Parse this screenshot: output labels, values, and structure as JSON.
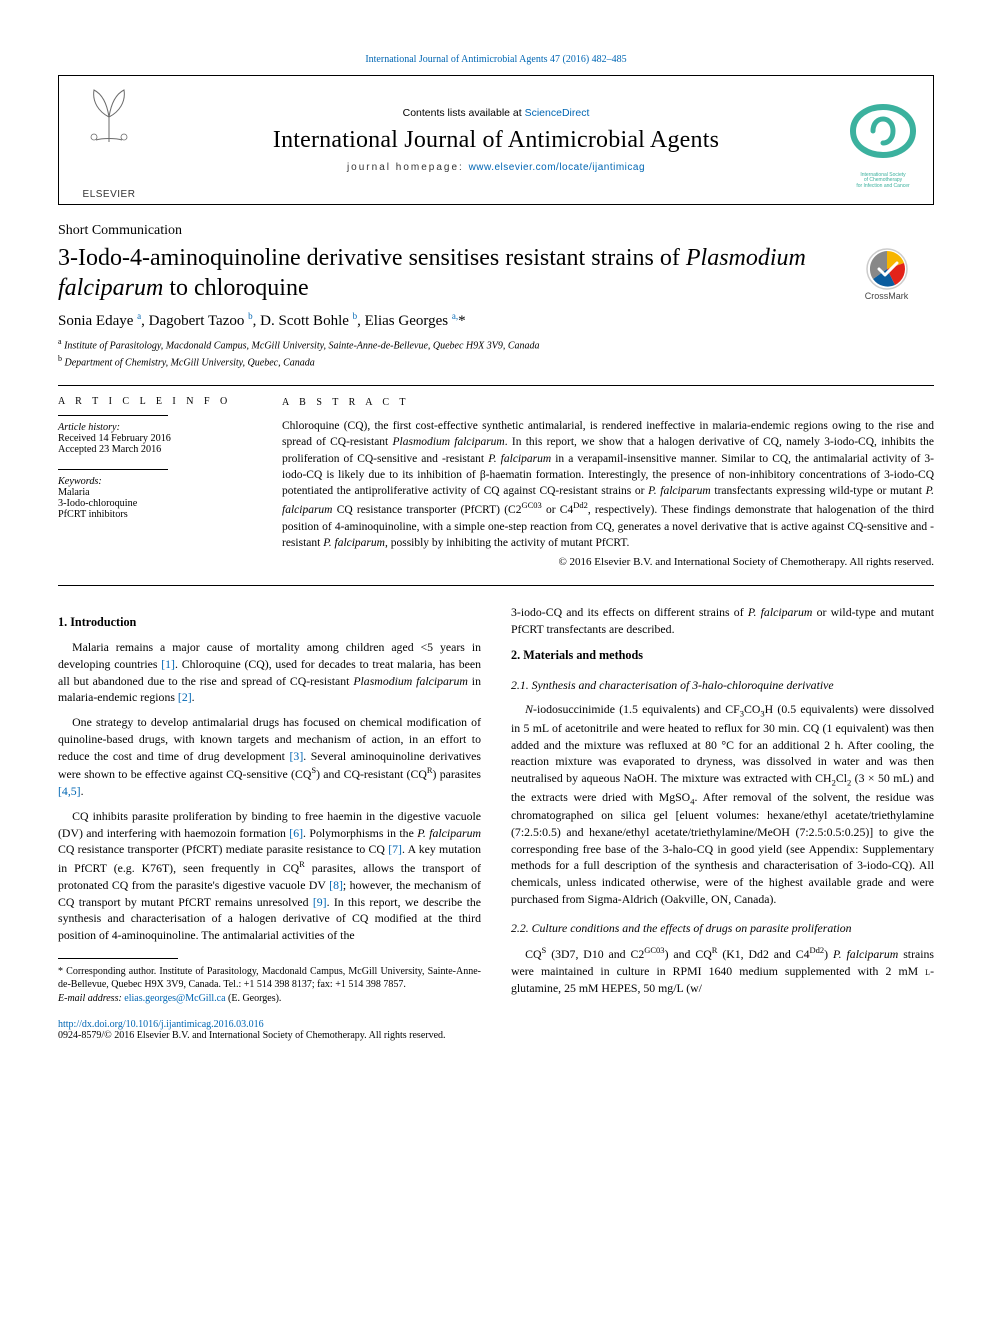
{
  "top_citation": "International Journal of Antimicrobial Agents 47 (2016) 482–485",
  "header": {
    "contents_prefix": "Contents lists available at ",
    "contents_link": "ScienceDirect",
    "journal_title": "International Journal of Antimicrobial Agents",
    "homepage_prefix": "journal homepage: ",
    "homepage_link": "www.elsevier.com/locate/ijantimicag",
    "elsevier_label": "ELSEVIER",
    "society_label_1": "International Society",
    "society_label_2": "of Chemotherapy",
    "society_label_3": "for Infection and Cancer"
  },
  "article_type": "Short Communication",
  "title_plain": "3-Iodo-4-aminoquinoline derivative sensitises resistant strains of ",
  "title_italic": "Plasmodium falciparum",
  "title_tail": " to chloroquine",
  "crossmark_label": "CrossMark",
  "authors_html": "Sonia Edaye <sup>a</sup>, Dagobert Tazoo <sup>b</sup>, D. Scott Bohle <sup>b</sup>, Elias Georges <sup>a,</sup><span class='affstar'>*</span>",
  "affiliations": [
    "a Institute of Parasitology, Macdonald Campus, McGill University, Sainte-Anne-de-Bellevue, Quebec H9X 3V9, Canada",
    "b Department of Chemistry, McGill University, Quebec, Canada"
  ],
  "article_info": {
    "heading": "A R T I C L E   I N F O",
    "history_label": "Article history:",
    "received": "Received 14 February 2016",
    "accepted": "Accepted 23 March 2016",
    "keywords_label": "Keywords:",
    "keywords": [
      "Malaria",
      "3-Iodo-chloroquine",
      "PfCRT inhibitors"
    ]
  },
  "abstract": {
    "heading": "A B S T R A C T",
    "text": "Chloroquine (CQ), the first cost-effective synthetic antimalarial, is rendered ineffective in malaria-endemic regions owing to the rise and spread of CQ-resistant Plasmodium falciparum. In this report, we show that a halogen derivative of CQ, namely 3-iodo-CQ, inhibits the proliferation of CQ-sensitive and -resistant P. falciparum in a verapamil-insensitive manner. Similar to CQ, the antimalarial activity of 3-iodo-CQ is likely due to its inhibition of β-haematin formation. Interestingly, the presence of non-inhibitory concentrations of 3-iodo-CQ potentiated the antiproliferative activity of CQ against CQ-resistant strains or P. falciparum transfectants expressing wild-type or mutant P. falciparum CQ resistance transporter (PfCRT) (C2GC03 or C4Dd2, respectively). These findings demonstrate that halogenation of the third position of 4-aminoquinoline, with a simple one-step reaction from CQ, generates a novel derivative that is active against CQ-sensitive and -resistant P. falciparum, possibly by inhibiting the activity of mutant PfCRT.",
    "copyright": "© 2016 Elsevier B.V. and International Society of Chemotherapy. All rights reserved."
  },
  "body": {
    "intro_heading": "1.  Introduction",
    "intro_p1": "Malaria remains a major cause of mortality among children aged <5 years in developing countries [1]. Chloroquine (CQ), used for decades to treat malaria, has been all but abandoned due to the rise and spread of CQ-resistant Plasmodium falciparum in malaria-endemic regions [2].",
    "intro_p2": "One strategy to develop antimalarial drugs has focused on chemical modification of quinoline-based drugs, with known targets and mechanism of action, in an effort to reduce the cost and time of drug development [3]. Several aminoquinoline derivatives were shown to be effective against CQ-sensitive (CQS) and CQ-resistant (CQR) parasites [4,5].",
    "intro_p3": "CQ inhibits parasite proliferation by binding to free haemin in the digestive vacuole (DV) and interfering with haemozoin formation [6]. Polymorphisms in the P. falciparum CQ resistance transporter (PfCRT) mediate parasite resistance to CQ [7]. A key mutation in PfCRT (e.g. K76T), seen frequently in CQR parasites, allows the transport of protonated CQ from the parasite's digestive vacuole DV [8]; however, the mechanism of CQ transport by mutant PfCRT remains unresolved [9]. In this report, we describe the synthesis and characterisation of a halogen derivative of CQ modified at the third position of 4-aminoquinoline. The antimalarial activities of the",
    "intro_p3_cont": "3-iodo-CQ and its effects on different strains of P. falciparum or wild-type and mutant PfCRT transfectants are described.",
    "mm_heading": "2.  Materials and methods",
    "mm_sub1": "2.1.  Synthesis and characterisation of 3-halo-chloroquine derivative",
    "mm_p1": "N-iodosuccinimide (1.5 equivalents) and CF3CO3H (0.5 equivalents) were dissolved in 5 mL of acetonitrile and were heated to reflux for 30 min. CQ (1 equivalent) was then added and the mixture was refluxed at 80 °C for an additional 2 h. After cooling, the reaction mixture was evaporated to dryness, was dissolved in water and was then neutralised by aqueous NaOH. The mixture was extracted with CH2Cl2 (3 × 50 mL) and the extracts were dried with MgSO4. After removal of the solvent, the residue was chromatographed on silica gel [eluent volumes: hexane/ethyl acetate/triethylamine (7:2.5:0.5) and hexane/ethyl acetate/triethylamine/MeOH (7:2.5:0.5:0.25)] to give the corresponding free base of the 3-halo-CQ in good yield (see Appendix: Supplementary methods for a full description of the synthesis and characterisation of 3-iodo-CQ). All chemicals, unless indicated otherwise, were of the highest available grade and were purchased from Sigma-Aldrich (Oakville, ON, Canada).",
    "mm_sub2": "2.2.  Culture conditions and the effects of drugs on parasite proliferation",
    "mm_p2": "CQS (3D7, D10 and C2GC03) and CQR (K1, Dd2 and C4Dd2) P. falciparum strains were maintained in culture in RPMI 1640 medium supplemented with 2 mM L-glutamine, 25 mM HEPES, 50 mg/L (w/"
  },
  "footnotes": {
    "corr": "* Corresponding author. Institute of Parasitology, Macdonald Campus, McGill University, Sainte-Anne-de-Bellevue, Quebec H9X 3V9, Canada. Tel.: +1 514 398 8137; fax: +1 514 398 7857.",
    "email_label": "E-mail address: ",
    "email": "elias.georges@McGill.ca",
    "email_tail": " (E. Georges)."
  },
  "doi": {
    "url_text": "http://dx.doi.org/10.1016/j.ijantimicag.2016.03.016",
    "issn_line": "0924-8579/© 2016 Elsevier B.V. and International Society of Chemotherapy. All rights reserved."
  },
  "colors": {
    "link": "#0066b3",
    "teal": "#3bb19e",
    "crossmark_red": "#e2231a",
    "crossmark_blue": "#0a5c9e",
    "crossmark_yellow": "#f7b500"
  }
}
